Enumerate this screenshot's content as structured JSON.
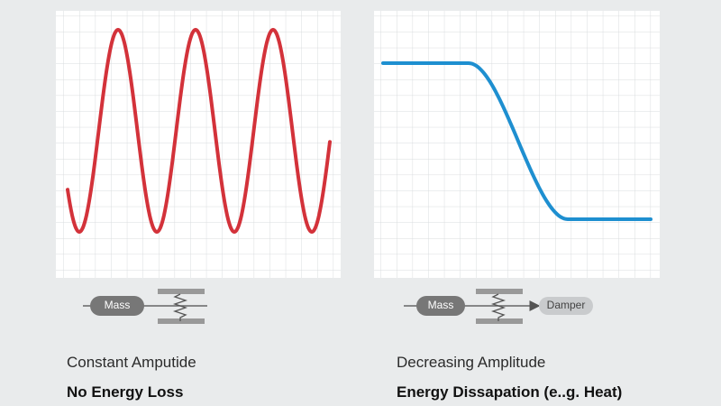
{
  "panels": [
    {
      "diagram": {
        "mass_label": "Mass"
      },
      "caption": [
        "Constant Amputide",
        "No Energy Loss"
      ]
    },
    {
      "diagram": {
        "mass_label": "Mass",
        "damper_label": "Damper"
      },
      "caption": [
        "Decreasing Amplitude",
        "Energy Dissapation (e..g. Heat)"
      ]
    }
  ]
}
